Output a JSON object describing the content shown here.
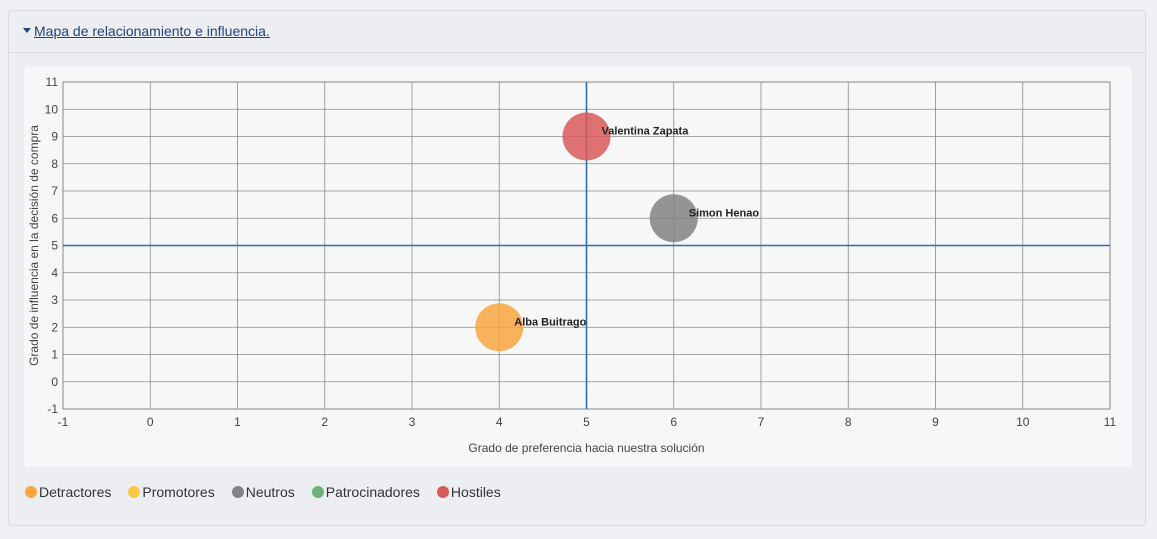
{
  "panel": {
    "title": "Mapa de relacionamiento e influencia."
  },
  "chart_data": {
    "type": "scatter",
    "xlabel": "Grado de preferencia hacia nuestra solución",
    "ylabel": "Grado de influencia en la decisión de compra",
    "xlim": [
      -1,
      11
    ],
    "ylim": [
      -1,
      11
    ],
    "xticks": [
      "-1",
      "0",
      "1",
      "2",
      "3",
      "4",
      "5",
      "6",
      "7",
      "8",
      "9",
      "10",
      "11"
    ],
    "yticks": [
      "-1",
      "0",
      "1",
      "2",
      "3",
      "4",
      "5",
      "6",
      "7",
      "8",
      "9",
      "10",
      "11"
    ],
    "grid": true,
    "reference_lines": {
      "x": 5,
      "y": 5
    },
    "points": [
      {
        "label": "Valentina Zapata",
        "x": 5,
        "y": 9,
        "category": "Hostiles"
      },
      {
        "label": "Simon Henao",
        "x": 6,
        "y": 6,
        "category": "Neutros"
      },
      {
        "label": "Alba Buitrago",
        "x": 4,
        "y": 2,
        "category": "Detractores"
      }
    ],
    "legend": [
      {
        "name": "Detractores",
        "color": "#f7a640"
      },
      {
        "name": "Promotores",
        "color": "#f7c948"
      },
      {
        "name": "Neutros",
        "color": "#808285"
      },
      {
        "name": "Patrocinadores",
        "color": "#6cb27a"
      },
      {
        "name": "Hostiles",
        "color": "#d9595b"
      }
    ],
    "legend_position": "bottom-left"
  }
}
